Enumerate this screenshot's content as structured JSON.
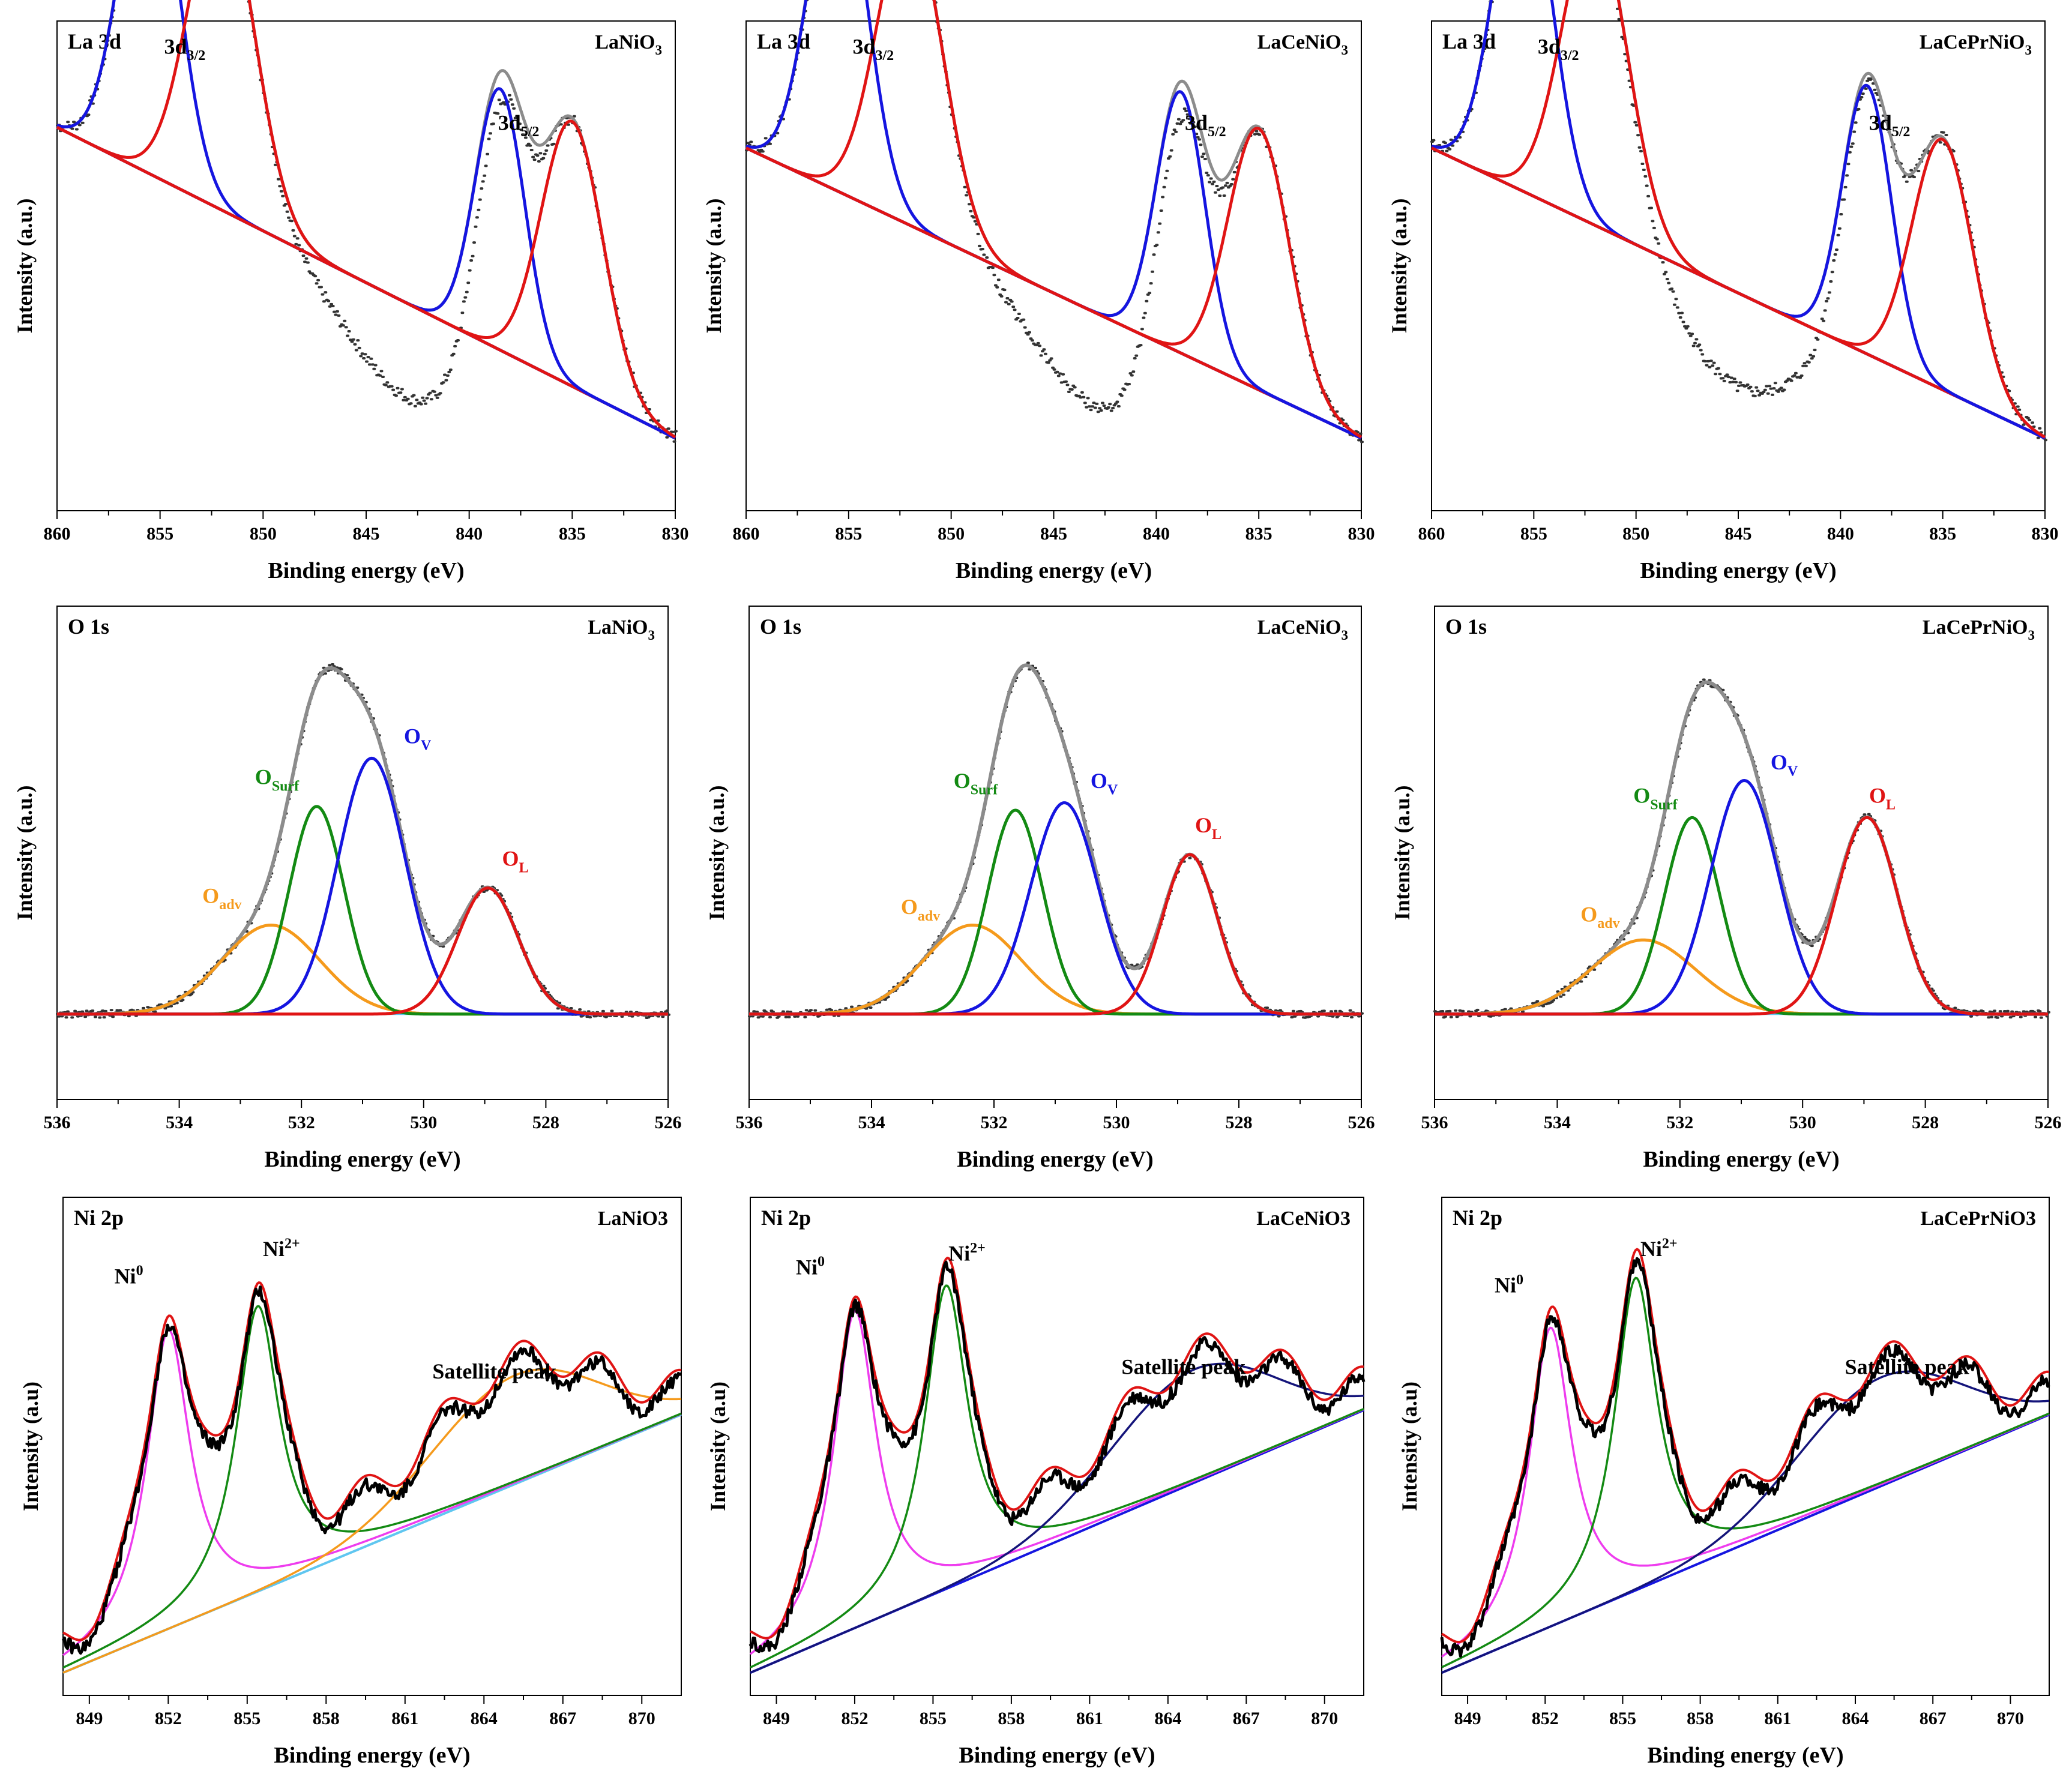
{
  "figure": {
    "background": "#ffffff",
    "colors": {
      "data": "#333333",
      "envelope": "#8c8c8c",
      "blue": "#1515e0",
      "red": "#e01414",
      "green": "#138a13",
      "orange": "#f59a1c",
      "magenta": "#ee3cee",
      "navy": "#14147a",
      "lightblue": "#5fc6f0",
      "black": "#000000"
    }
  },
  "chart_data": [
    {
      "id": "la-lanio3",
      "type": "line",
      "title": "La 3d",
      "sample": "LaNiO",
      "subscript": "3",
      "xlabel": "Binding energy (eV)",
      "ylabel": "Intensity (a.u.)",
      "xlim": [
        860,
        830
      ],
      "xticks": [
        860,
        855,
        850,
        845,
        840,
        835,
        830
      ],
      "ylim": [
        -0.2,
        1.15
      ],
      "baseline": {
        "x": [
          858,
          830
        ],
        "y": [
          0.8,
          0.0
        ]
      },
      "peaks": [
        {
          "center": 855.5,
          "height": 0.92,
          "width": 1.4,
          "color": "blue"
        },
        {
          "center": 852.0,
          "height": 0.87,
          "width": 1.6,
          "color": "red"
        },
        {
          "center": 838.5,
          "height": 0.72,
          "width": 1.2,
          "color": "blue"
        },
        {
          "center": 835.0,
          "height": 0.73,
          "width": 1.5,
          "color": "red"
        }
      ],
      "dip": {
        "center": 843.0,
        "depth": -0.26,
        "width": 3.0
      },
      "labels": [
        {
          "text": "3d",
          "sub": "3/2",
          "x": 853.8,
          "y": 1.06
        },
        {
          "text": "3d",
          "sub": "5/2",
          "x": 837.6,
          "y": 0.85
        }
      ]
    },
    {
      "id": "la-lacenio3",
      "type": "line",
      "title": "La 3d",
      "sample": "LaCeNiO",
      "subscript": "3",
      "xlabel": "Binding energy (eV)",
      "ylabel": "Intensity (a.u.)",
      "xlim": [
        860,
        830
      ],
      "xticks": [
        860,
        855,
        850,
        845,
        840,
        835,
        830
      ],
      "ylim": [
        -0.2,
        1.15
      ],
      "baseline": {
        "x": [
          860,
          830
        ],
        "y": [
          0.8,
          0.0
        ]
      },
      "peaks": [
        {
          "center": 855.5,
          "height": 0.92,
          "width": 1.4,
          "color": "blue"
        },
        {
          "center": 852.0,
          "height": 0.85,
          "width": 1.6,
          "color": "red"
        },
        {
          "center": 838.8,
          "height": 0.72,
          "width": 1.2,
          "color": "blue"
        },
        {
          "center": 835.0,
          "height": 0.72,
          "width": 1.5,
          "color": "red"
        }
      ],
      "dip": {
        "center": 843.0,
        "depth": -0.26,
        "width": 3.0
      },
      "labels": [
        {
          "text": "3d",
          "sub": "3/2",
          "x": 853.8,
          "y": 1.06
        },
        {
          "text": "3d",
          "sub": "5/2",
          "x": 837.6,
          "y": 0.85
        }
      ]
    },
    {
      "id": "la-lacepr",
      "type": "line",
      "title": "La 3d",
      "sample": "LaCePrNiO",
      "subscript": "3",
      "xlabel": "Binding energy (eV)",
      "ylabel": "Intensity (a.u.)",
      "xlim": [
        860,
        830
      ],
      "xticks": [
        860,
        855,
        850,
        845,
        840,
        835,
        830
      ],
      "ylim": [
        -0.2,
        1.15
      ],
      "baseline": {
        "x": [
          860,
          830
        ],
        "y": [
          0.8,
          0.0
        ]
      },
      "peaks": [
        {
          "center": 855.5,
          "height": 0.92,
          "width": 1.4,
          "color": "blue"
        },
        {
          "center": 852.0,
          "height": 0.84,
          "width": 1.6,
          "color": "red"
        },
        {
          "center": 838.7,
          "height": 0.74,
          "width": 1.2,
          "color": "blue"
        },
        {
          "center": 835.0,
          "height": 0.69,
          "width": 1.5,
          "color": "red"
        }
      ],
      "dip": {
        "center": 845.0,
        "depth": -0.26,
        "width": 3.0
      },
      "labels": [
        {
          "text": "3d",
          "sub": "3/2",
          "x": 853.8,
          "y": 1.06
        },
        {
          "text": "3d",
          "sub": "5/2",
          "x": 837.6,
          "y": 0.85
        }
      ]
    },
    {
      "id": "o-lanio3",
      "type": "line",
      "title": "O 1s",
      "sample": "LaNiO",
      "subscript": "3",
      "xlabel": "Binding energy (eV)",
      "ylabel": "Intensity (a.u.)",
      "xlim": [
        536,
        526
      ],
      "xticks": [
        536,
        534,
        532,
        530,
        528,
        526
      ],
      "ylim": [
        -0.23,
        1.1
      ],
      "peaks": [
        {
          "center": 532.5,
          "height": 0.24,
          "width": 0.8,
          "color": "orange",
          "name": "O",
          "sub": "adv"
        },
        {
          "center": 531.75,
          "height": 0.56,
          "width": 0.45,
          "color": "green",
          "name": "O",
          "sub": "Surf"
        },
        {
          "center": 530.85,
          "height": 0.69,
          "width": 0.55,
          "color": "blue",
          "name": "O",
          "sub": "V"
        },
        {
          "center": 528.95,
          "height": 0.34,
          "width": 0.5,
          "color": "red",
          "name": "O",
          "sub": "L"
        }
      ],
      "labels": [
        {
          "text": "O",
          "sub": "adv",
          "x": 533.3,
          "y": 0.3,
          "color": "orange"
        },
        {
          "text": "O",
          "sub": "Surf",
          "x": 532.4,
          "y": 0.62,
          "color": "green"
        },
        {
          "text": "O",
          "sub": "V",
          "x": 530.1,
          "y": 0.73,
          "color": "blue"
        },
        {
          "text": "O",
          "sub": "L",
          "x": 528.5,
          "y": 0.4,
          "color": "red"
        }
      ]
    },
    {
      "id": "o-lacenio3",
      "type": "line",
      "title": "O 1s",
      "sample": "LaCeNiO",
      "subscript": "3",
      "xlabel": "Binding energy (eV)",
      "ylabel": "Intensity (a.u.)",
      "xlim": [
        536,
        526
      ],
      "xticks": [
        536,
        534,
        532,
        530,
        528,
        526
      ],
      "ylim": [
        -0.23,
        1.1
      ],
      "peaks": [
        {
          "center": 532.35,
          "height": 0.24,
          "width": 0.8,
          "color": "orange",
          "name": "O",
          "sub": "adv"
        },
        {
          "center": 531.65,
          "height": 0.55,
          "width": 0.45,
          "color": "green",
          "name": "O",
          "sub": "Surf"
        },
        {
          "center": 530.85,
          "height": 0.57,
          "width": 0.55,
          "color": "blue",
          "name": "O",
          "sub": "V"
        },
        {
          "center": 528.8,
          "height": 0.43,
          "width": 0.45,
          "color": "red",
          "name": "O",
          "sub": "L"
        }
      ],
      "labels": [
        {
          "text": "O",
          "sub": "adv",
          "x": 533.2,
          "y": 0.27,
          "color": "orange"
        },
        {
          "text": "O",
          "sub": "Surf",
          "x": 532.3,
          "y": 0.61,
          "color": "green"
        },
        {
          "text": "O",
          "sub": "V",
          "x": 530.2,
          "y": 0.61,
          "color": "blue"
        },
        {
          "text": "O",
          "sub": "L",
          "x": 528.5,
          "y": 0.49,
          "color": "red"
        }
      ]
    },
    {
      "id": "o-lacepr",
      "type": "line",
      "title": "O 1s",
      "sample": "LaCePrNiO",
      "subscript": "3",
      "xlabel": "Binding energy (eV)",
      "ylabel": "Intensity (a.u.)",
      "xlim": [
        536,
        526
      ],
      "xticks": [
        536,
        534,
        532,
        530,
        528,
        526
      ],
      "ylim": [
        -0.23,
        1.1
      ],
      "peaks": [
        {
          "center": 532.6,
          "height": 0.2,
          "width": 0.85,
          "color": "orange",
          "name": "O",
          "sub": "adv"
        },
        {
          "center": 531.8,
          "height": 0.53,
          "width": 0.45,
          "color": "green",
          "name": "O",
          "sub": "Surf"
        },
        {
          "center": 530.95,
          "height": 0.63,
          "width": 0.55,
          "color": "blue",
          "name": "O",
          "sub": "V"
        },
        {
          "center": 528.95,
          "height": 0.53,
          "width": 0.5,
          "color": "red",
          "name": "O",
          "sub": "L"
        }
      ],
      "labels": [
        {
          "text": "O",
          "sub": "adv",
          "x": 533.3,
          "y": 0.25,
          "color": "orange"
        },
        {
          "text": "O",
          "sub": "Surf",
          "x": 532.4,
          "y": 0.57,
          "color": "green"
        },
        {
          "text": "O",
          "sub": "V",
          "x": 530.3,
          "y": 0.66,
          "color": "blue"
        },
        {
          "text": "O",
          "sub": "L",
          "x": 528.7,
          "y": 0.57,
          "color": "red"
        }
      ]
    },
    {
      "id": "ni-lanio3",
      "type": "line",
      "title": "Ni 2p",
      "sample": "LaNiO3",
      "xlabel": "Binding energy (eV)",
      "ylabel": "Intensity (a.u)",
      "xlim": [
        848,
        871.5
      ],
      "xticks": [
        849,
        852,
        855,
        858,
        861,
        864,
        867,
        870
      ],
      "ylim": [
        -0.05,
        1.05
      ],
      "baseline": {
        "x": [
          848,
          871.5
        ],
        "y": [
          0.0,
          0.57
        ]
      },
      "baseline_color": "lightblue",
      "peaks": [
        {
          "center": 852.0,
          "height": 0.66,
          "width": 1.0,
          "color": "magenta"
        },
        {
          "center": 855.4,
          "height": 0.63,
          "width": 1.0,
          "color": "green"
        },
        {
          "center": 865.2,
          "height": 0.24,
          "width": 1.6,
          "color": "orange",
          "sat": true
        }
      ],
      "labels": [
        {
          "text": "Ni",
          "sup": "0",
          "x": 850.5,
          "y": 0.86
        },
        {
          "text": "Ni",
          "sup": "2+",
          "x": 856.3,
          "y": 0.92
        },
        {
          "text": "Satellite peak",
          "x": 864.4,
          "y": 0.65
        }
      ]
    },
    {
      "id": "ni-lacenio3",
      "type": "line",
      "title": "Ni 2p",
      "sample": "LaCeNiO3",
      "xlabel": "Binding energy (eV)",
      "ylabel": "Intensity (a.u)",
      "xlim": [
        848,
        871.5
      ],
      "xticks": [
        849,
        852,
        855,
        858,
        861,
        864,
        867,
        870
      ],
      "ylim": [
        -0.05,
        1.05
      ],
      "baseline": {
        "x": [
          848,
          871.5
        ],
        "y": [
          0.0,
          0.58
        ]
      },
      "baseline_color": "blue",
      "peaks": [
        {
          "center": 852.0,
          "height": 0.7,
          "width": 1.0,
          "color": "magenta"
        },
        {
          "center": 855.5,
          "height": 0.67,
          "width": 1.0,
          "color": "green"
        },
        {
          "center": 865.0,
          "height": 0.25,
          "width": 1.6,
          "color": "navy",
          "sat": true
        }
      ],
      "labels": [
        {
          "text": "Ni",
          "sup": "0",
          "x": 850.3,
          "y": 0.88
        },
        {
          "text": "Ni",
          "sup": "2+",
          "x": 856.3,
          "y": 0.91
        },
        {
          "text": "Satellite peak",
          "x": 864.6,
          "y": 0.66
        }
      ]
    },
    {
      "id": "ni-lacepr",
      "type": "line",
      "title": "Ni 2p",
      "sample": "LaCePrNiO3",
      "xlabel": "Binding energy (eV)",
      "ylabel": "Intensity (a.u)",
      "xlim": [
        848,
        871.5
      ],
      "xticks": [
        849,
        852,
        855,
        858,
        861,
        864,
        867,
        870
      ],
      "ylim": [
        -0.05,
        1.05
      ],
      "baseline": {
        "x": [
          848,
          871.5
        ],
        "y": [
          0.0,
          0.57
        ]
      },
      "baseline_color": "blue",
      "peaks": [
        {
          "center": 852.2,
          "height": 0.66,
          "width": 1.0,
          "color": "magenta"
        },
        {
          "center": 855.5,
          "height": 0.69,
          "width": 1.0,
          "color": "green"
        },
        {
          "center": 865.0,
          "height": 0.24,
          "width": 1.6,
          "color": "navy",
          "sat": true
        }
      ],
      "labels": [
        {
          "text": "Ni",
          "sup": "0",
          "x": 850.6,
          "y": 0.84
        },
        {
          "text": "Ni",
          "sup": "2+",
          "x": 856.4,
          "y": 0.92
        },
        {
          "text": "Satellite peak",
          "x": 866.0,
          "y": 0.66
        }
      ]
    }
  ]
}
